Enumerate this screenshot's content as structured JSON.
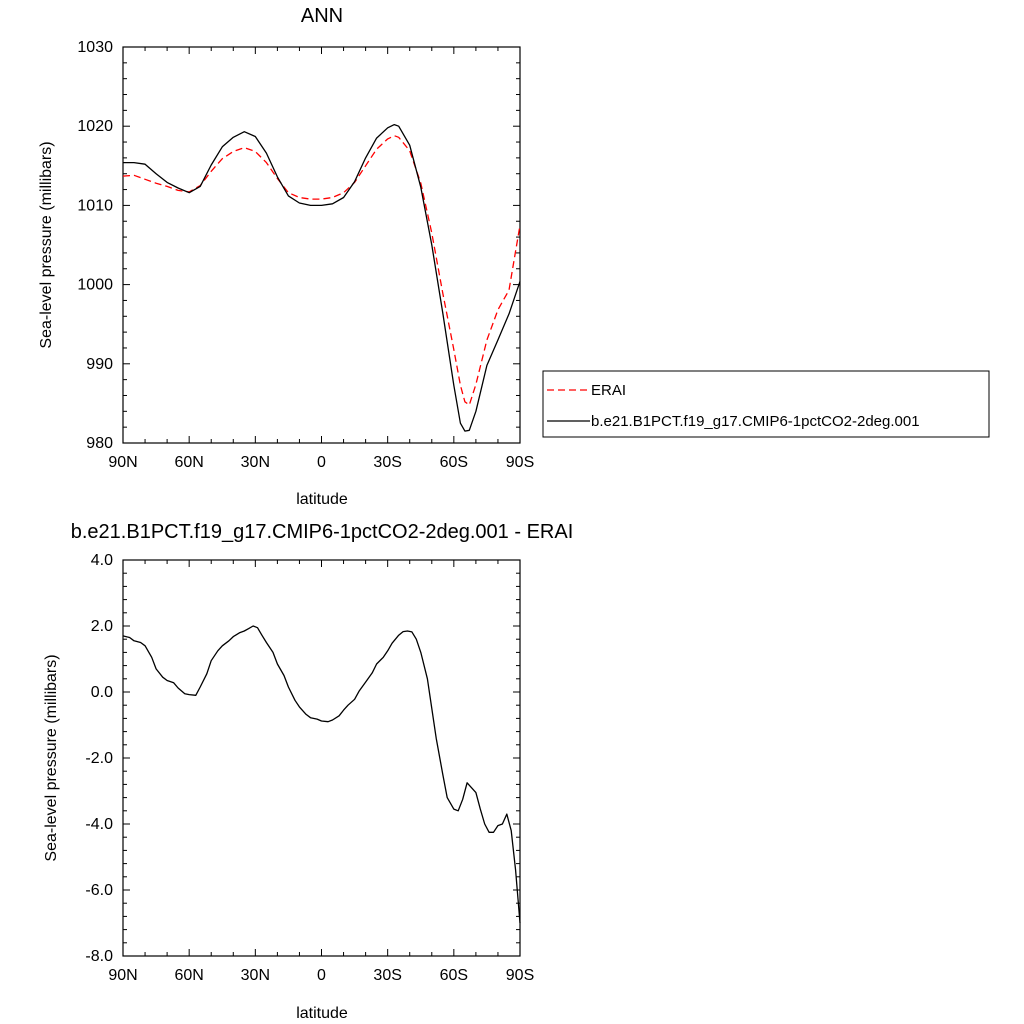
{
  "chart_data": [
    {
      "type": "line",
      "title": "ANN",
      "xlabel": "latitude",
      "ylabel": "Sea-level pressure (millibars)",
      "x_ticks": [
        {
          "value": -90,
          "label": "90N"
        },
        {
          "value": -60,
          "label": "60N"
        },
        {
          "value": -30,
          "label": "30N"
        },
        {
          "value": 0,
          "label": "0"
        },
        {
          "value": 30,
          "label": "30S"
        },
        {
          "value": 60,
          "label": "60S"
        },
        {
          "value": 90,
          "label": "90S"
        }
      ],
      "xlim": [
        -90,
        90
      ],
      "y_ticks": [
        {
          "value": 980,
          "label": "980"
        },
        {
          "value": 990,
          "label": "990"
        },
        {
          "value": 1000,
          "label": "1000"
        },
        {
          "value": 1010,
          "label": "1010"
        },
        {
          "value": 1020,
          "label": "1020"
        },
        {
          "value": 1030,
          "label": "1030"
        }
      ],
      "ylim": [
        980,
        1030
      ],
      "legend_position": "right",
      "series": [
        {
          "name": "ERAI",
          "color": "#ff0000",
          "style": "dashed",
          "x": [
            -90,
            -85,
            -80,
            -75,
            -70,
            -65,
            -60,
            -55,
            -50,
            -45,
            -40,
            -35,
            -30,
            -25,
            -20,
            -15,
            -10,
            -5,
            0,
            5,
            10,
            15,
            20,
            25,
            30,
            33,
            35,
            40,
            45,
            50,
            55,
            60,
            63,
            65,
            67,
            70,
            75,
            80,
            85,
            90
          ],
          "y": [
            1013.7,
            1013.8,
            1013.3,
            1012.8,
            1012.4,
            1011.9,
            1011.7,
            1012.5,
            1014.3,
            1015.9,
            1016.8,
            1017.3,
            1016.8,
            1015.4,
            1013.4,
            1011.6,
            1011.0,
            1010.8,
            1010.8,
            1011.0,
            1011.6,
            1012.9,
            1015.0,
            1017.1,
            1018.4,
            1018.8,
            1018.6,
            1016.9,
            1012.8,
            1006.5,
            998.9,
            991.8,
            987.3,
            985.2,
            984.8,
            987.4,
            993.0,
            996.8,
            999.3,
            1007.5
          ]
        },
        {
          "name": "b.e21.B1PCT.f19_g17.CMIP6-1pctCO2-2deg.001",
          "color": "#000000",
          "style": "solid",
          "x": [
            -90,
            -85,
            -80,
            -75,
            -70,
            -65,
            -60,
            -55,
            -50,
            -45,
            -40,
            -35,
            -30,
            -25,
            -20,
            -15,
            -10,
            -5,
            0,
            5,
            10,
            15,
            20,
            25,
            30,
            33,
            35,
            40,
            45,
            50,
            55,
            60,
            63,
            65,
            67,
            70,
            75,
            80,
            85,
            90
          ],
          "y": [
            1015.4,
            1015.4,
            1015.2,
            1014.0,
            1012.9,
            1012.2,
            1011.6,
            1012.4,
            1015.1,
            1017.4,
            1018.6,
            1019.3,
            1018.7,
            1016.6,
            1013.6,
            1011.2,
            1010.3,
            1010.0,
            1010.0,
            1010.2,
            1011.0,
            1013.0,
            1016.0,
            1018.5,
            1019.8,
            1020.2,
            1020.0,
            1017.6,
            1012.3,
            1005.0,
            996.4,
            987.3,
            982.5,
            981.5,
            981.6,
            984.0,
            989.8,
            993.0,
            996.3,
            1000.4
          ]
        }
      ]
    },
    {
      "type": "line",
      "title": "b.e21.B1PCT.f19_g17.CMIP6-1pctCO2-2deg.001 - ERAI",
      "xlabel": "latitude",
      "ylabel": "Sea-level pressure (millibars)",
      "x_ticks": [
        {
          "value": -90,
          "label": "90N"
        },
        {
          "value": -60,
          "label": "60N"
        },
        {
          "value": -30,
          "label": "30N"
        },
        {
          "value": 0,
          "label": "0"
        },
        {
          "value": 30,
          "label": "30S"
        },
        {
          "value": 60,
          "label": "60S"
        },
        {
          "value": 90,
          "label": "90S"
        }
      ],
      "xlim": [
        -90,
        90
      ],
      "y_ticks": [
        {
          "value": -8,
          "label": "-8.0"
        },
        {
          "value": -6,
          "label": "-6.0"
        },
        {
          "value": -4,
          "label": "-4.0"
        },
        {
          "value": -2,
          "label": "-2.0"
        },
        {
          "value": 0,
          "label": "0.0"
        },
        {
          "value": 2,
          "label": "2.0"
        },
        {
          "value": 4,
          "label": "4.0"
        }
      ],
      "ylim": [
        -8,
        4
      ],
      "series": [
        {
          "color": "#000000",
          "style": "solid",
          "x": [
            -90,
            -87,
            -85,
            -82,
            -80,
            -77,
            -75,
            -72,
            -70,
            -67,
            -65,
            -62,
            -60,
            -57,
            -55,
            -52,
            -50,
            -47,
            -45,
            -42,
            -40,
            -37,
            -35,
            -33,
            -31,
            -29,
            -27,
            -25,
            -22,
            -20,
            -17,
            -15,
            -12,
            -10,
            -7,
            -5,
            -2,
            0,
            3,
            5,
            8,
            10,
            12,
            15,
            17,
            20,
            23,
            25,
            28,
            30,
            32,
            35,
            37,
            39,
            41,
            43,
            45,
            48,
            50,
            52,
            55,
            57,
            60,
            62,
            64,
            66,
            68,
            70,
            72,
            74,
            76,
            78,
            80,
            82,
            84,
            86,
            88,
            90
          ],
          "y": [
            1.7,
            1.65,
            1.55,
            1.5,
            1.4,
            1.05,
            0.7,
            0.45,
            0.35,
            0.28,
            0.12,
            -0.05,
            -0.08,
            -0.1,
            0.15,
            0.55,
            0.95,
            1.25,
            1.4,
            1.55,
            1.68,
            1.8,
            1.85,
            1.92,
            2.0,
            1.95,
            1.72,
            1.5,
            1.2,
            0.85,
            0.5,
            0.15,
            -0.25,
            -0.45,
            -0.68,
            -0.78,
            -0.82,
            -0.88,
            -0.9,
            -0.85,
            -0.72,
            -0.55,
            -0.4,
            -0.22,
            0.02,
            0.3,
            0.58,
            0.85,
            1.05,
            1.25,
            1.48,
            1.72,
            1.83,
            1.85,
            1.82,
            1.6,
            1.2,
            0.4,
            -0.5,
            -1.4,
            -2.5,
            -3.2,
            -3.55,
            -3.6,
            -3.25,
            -2.75,
            -2.9,
            -3.05,
            -3.55,
            -4.0,
            -4.25,
            -4.25,
            -4.05,
            -4.0,
            -3.7,
            -4.2,
            -5.4,
            -7.0
          ]
        }
      ]
    }
  ]
}
